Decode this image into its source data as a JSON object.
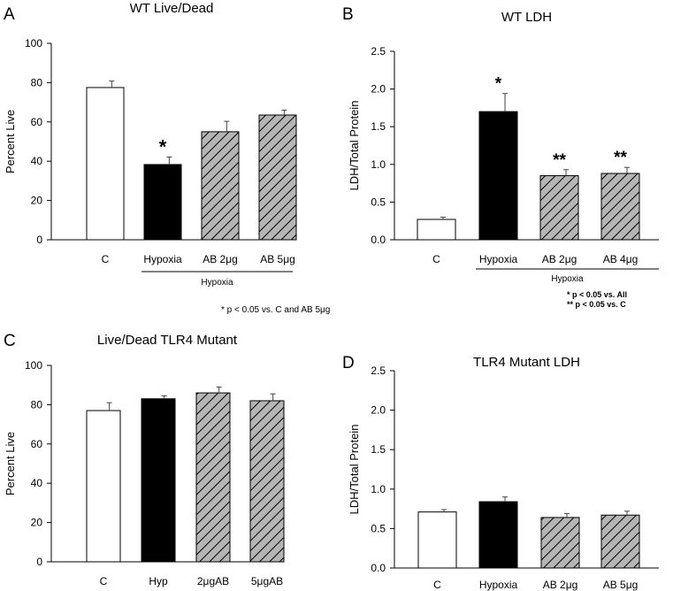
{
  "chart_data": [
    {
      "panel_label": "A",
      "type": "bar",
      "title": "WT Live/Dead",
      "ylabel": "Percent Live",
      "ylim": [
        0,
        100
      ],
      "yticks": [
        "0",
        "20",
        "40",
        "60",
        "80",
        "100"
      ],
      "categories": [
        "C",
        "Hypoxia",
        "AB 2μg",
        "AB 5μg"
      ],
      "values": [
        77.5,
        38.3,
        55,
        63.5
      ],
      "errors": [
        3.3,
        3.8,
        5.3,
        2.5
      ],
      "bar_styles": [
        "white",
        "black",
        "hatched",
        "hatched"
      ],
      "significance": [
        "",
        "*",
        "",
        ""
      ],
      "group_label": "Hypoxia",
      "footnotes": [
        "* p < 0.05 vs. C and AB 5μg"
      ]
    },
    {
      "panel_label": "B",
      "type": "bar",
      "title": "WT LDH",
      "ylabel": "LDH/Total Protein",
      "ylim": [
        0,
        2.5
      ],
      "yticks": [
        "0.0",
        "0.5",
        "1.0",
        "1.5",
        "2.0",
        "2.5"
      ],
      "categories": [
        "C",
        "Hypoxia",
        "AB 2μg",
        "AB 4μg"
      ],
      "values": [
        0.27,
        1.7,
        0.85,
        0.88
      ],
      "errors": [
        0.03,
        0.24,
        0.08,
        0.08
      ],
      "bar_styles": [
        "white",
        "black",
        "hatched",
        "hatched"
      ],
      "significance": [
        "",
        "*",
        "**",
        "**"
      ],
      "group_label": "Hypoxia",
      "footnotes": [
        "* p < 0.05 vs. All",
        "** p < 0.05 vs. C"
      ]
    },
    {
      "panel_label": "C",
      "type": "bar",
      "title": "Live/Dead TLR4 Mutant",
      "ylabel": "Percent Live",
      "ylim": [
        0,
        100
      ],
      "yticks": [
        "0",
        "20",
        "40",
        "60",
        "80",
        "100"
      ],
      "categories": [
        "C",
        "Hyp",
        "2μgAB",
        "5μgAB"
      ],
      "values": [
        77,
        83,
        86,
        82
      ],
      "errors": [
        4,
        1.5,
        3,
        3.5
      ],
      "bar_styles": [
        "white",
        "black",
        "hatched",
        "hatched"
      ],
      "significance": [
        "",
        "",
        "",
        ""
      ],
      "group_label": "",
      "footnotes": []
    },
    {
      "panel_label": "D",
      "type": "bar",
      "title": "TLR4 Mutant LDH",
      "ylabel": "LDH/Total Protein",
      "ylim": [
        0,
        2.5
      ],
      "yticks": [
        "0.0",
        "0.5",
        "1.0",
        "1.5",
        "2.0",
        "2.5"
      ],
      "categories": [
        "C",
        "Hypoxia",
        "AB 2μg",
        "AB 5μg"
      ],
      "values": [
        0.71,
        0.84,
        0.64,
        0.67
      ],
      "errors": [
        0.03,
        0.06,
        0.05,
        0.05
      ],
      "bar_styles": [
        "white",
        "black",
        "hatched",
        "hatched"
      ],
      "significance": [
        "",
        "",
        "",
        ""
      ],
      "group_label": "",
      "footnotes": []
    }
  ]
}
